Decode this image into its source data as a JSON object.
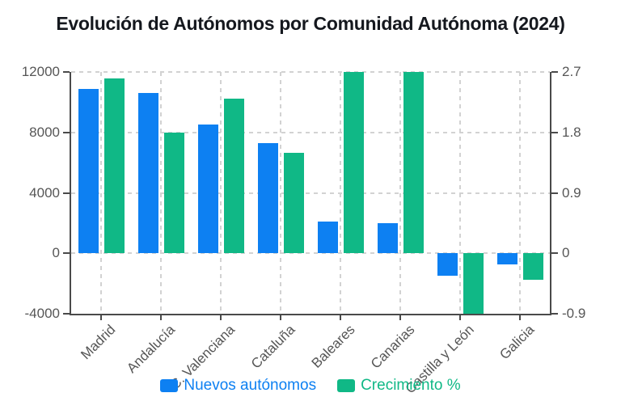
{
  "title": "Evolución de Autónomos por Comunidad Autónoma (2024)",
  "colors": {
    "bar_blue": "#0d80f2",
    "bar_green": "#10b886",
    "axis_line": "#4a4a4a",
    "grid_line": "#d2d2d2",
    "tick_text": "#565656",
    "title_text": "#15181e"
  },
  "legend": {
    "items": [
      {
        "label": "Nuevos autónomos",
        "color": "#0d80f2"
      },
      {
        "label": "Crecimiento %",
        "color": "#10b886"
      }
    ]
  },
  "chart_data": {
    "type": "bar",
    "title": "Evolución de Autónomos por Comunidad Autónoma (2024)",
    "xlabel": "",
    "ylabel_left": "",
    "ylabel_right": "",
    "categories": [
      "Madrid",
      "Andalucía",
      "C. Valenciana",
      "Cataluña",
      "Baleares",
      "Canarias",
      "Castilla y León",
      "Galicia"
    ],
    "series": [
      {
        "name": "Nuevos autónomos",
        "axis": "left",
        "color": "#0d80f2",
        "values": [
          10900,
          10600,
          8500,
          7300,
          2100,
          2000,
          -1500,
          -750
        ]
      },
      {
        "name": "Crecimiento %",
        "axis": "right",
        "color": "#10b886",
        "values": [
          2.6,
          1.8,
          2.3,
          1.5,
          2.7,
          2.7,
          -0.9,
          -0.4
        ]
      }
    ],
    "left_axis": {
      "min": -4000,
      "max": 12000,
      "ticks": [
        12000,
        8000,
        4000,
        0,
        -4000
      ],
      "tick_labels": [
        "12000",
        "8000",
        "4000",
        "0",
        "-4000"
      ]
    },
    "right_axis": {
      "min": -0.9,
      "max": 2.7,
      "ticks": [
        2.7,
        1.8,
        0.9,
        0,
        -0.9
      ],
      "tick_labels": [
        "2.7",
        "1.8",
        "0.9",
        "0",
        "-0.9"
      ]
    },
    "grid": true,
    "grid_style": "dashed",
    "legend_position": "bottom"
  }
}
